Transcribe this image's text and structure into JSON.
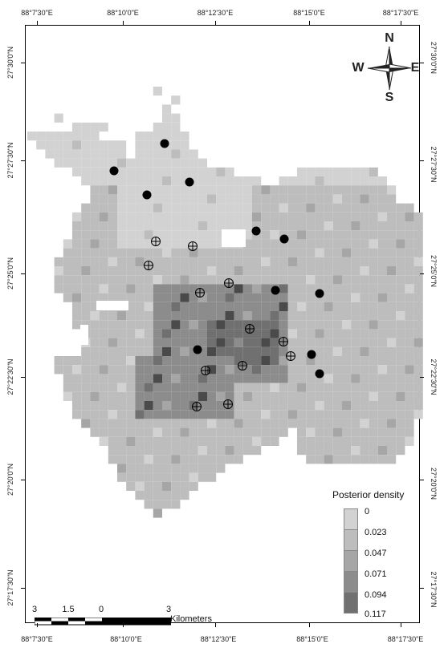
{
  "map": {
    "top_ticks": [
      "88°7'30\"E",
      "88°10'0\"E",
      "88°12'30\"E",
      "88°15'0\"E",
      "88°17'30\"E"
    ],
    "bottom_ticks": [
      "88°7'30\"E",
      "88°10'0\"E",
      "88°12'30\"E",
      "88°15'0\"E",
      "88°17'30\"E"
    ],
    "left_ticks": [
      "27°30'0\"N",
      "27°27'30\"N",
      "27°25'0\"N",
      "27°22'30\"N",
      "27°20'0\"N",
      "27°17'30\"N"
    ],
    "right_ticks": [
      "27°30'0\"N",
      "27°27'30\"N",
      "27°25'0\"N",
      "27°22'30\"N",
      "27°20'0\"N",
      "27°17'30\"N"
    ]
  },
  "compass": {
    "n": "N",
    "s": "S",
    "e": "E",
    "w": "W"
  },
  "legend": {
    "title": "Posterior density",
    "classes": [
      {
        "label": "0",
        "color": "#d2d2d2"
      },
      {
        "label": "0.023",
        "color": "#bdbdbd"
      },
      {
        "label": "0.047",
        "color": "#a6a6a6"
      },
      {
        "label": "0.071",
        "color": "#8c8c8c"
      },
      {
        "label": "0.094",
        "color": "#707070"
      },
      {
        "label": "0.117",
        "color": "#4a4a4a"
      }
    ]
  },
  "scale_bar": {
    "labels": [
      "3",
      "1.5",
      "0",
      "3"
    ],
    "unit": "Kilometers"
  }
}
